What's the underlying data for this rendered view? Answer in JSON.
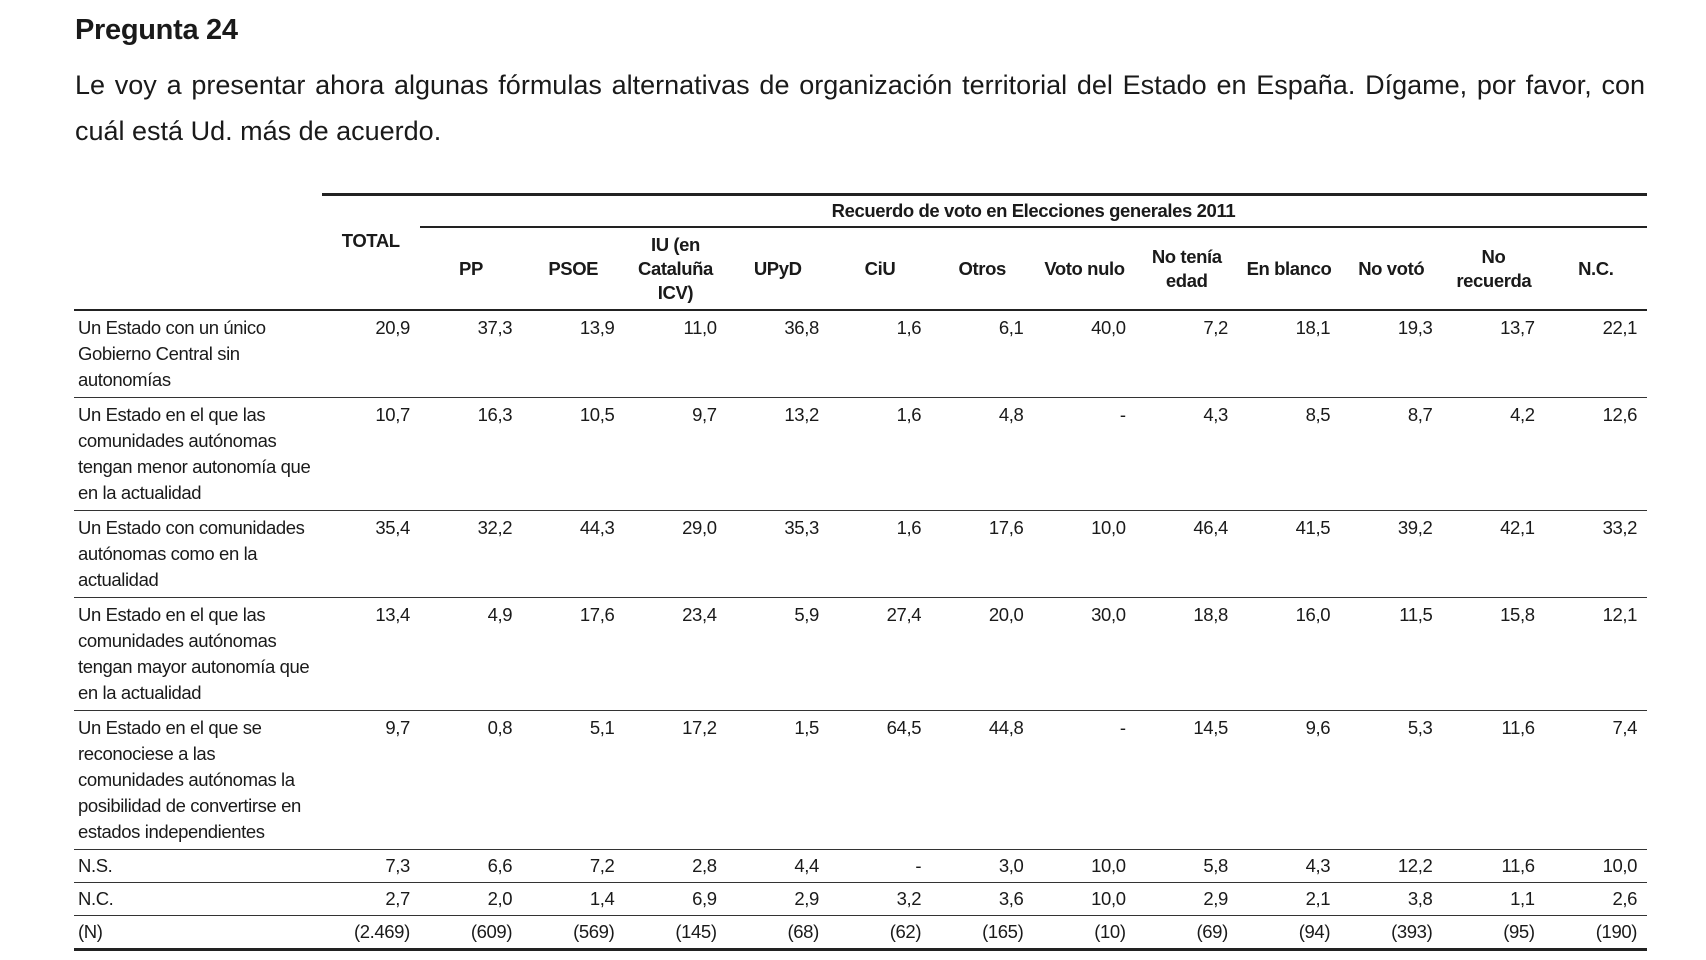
{
  "heading": "Pregunta 24",
  "question": "Le voy a presentar ahora algunas fórmulas alternativas de organización territorial del Estado en España. Dígame, por favor, con cuál está Ud. más de acuerdo.",
  "table": {
    "group_header": "Recuerdo de voto en Elecciones generales 2011",
    "columns": [
      "TOTAL",
      "PP",
      "PSOE",
      "IU (en Cataluña ICV)",
      "UPyD",
      "CiU",
      "Otros",
      "Voto nulo",
      "No tenía edad",
      "En blanco",
      "No votó",
      "No recuerda",
      "N.C."
    ],
    "rows": [
      {
        "label": "Un Estado con un único Gobierno Central sin autonomías",
        "values": [
          "20,9",
          "37,3",
          "13,9",
          "11,0",
          "36,8",
          "1,6",
          "6,1",
          "40,0",
          "7,2",
          "18,1",
          "19,3",
          "13,7",
          "22,1"
        ]
      },
      {
        "label": "Un Estado en el que las comunidades autónomas tengan menor autonomía que en la actualidad",
        "values": [
          "10,7",
          "16,3",
          "10,5",
          "9,7",
          "13,2",
          "1,6",
          "4,8",
          "-",
          "4,3",
          "8,5",
          "8,7",
          "4,2",
          "12,6"
        ]
      },
      {
        "label": "Un Estado con comunidades autónomas como en la actualidad",
        "values": [
          "35,4",
          "32,2",
          "44,3",
          "29,0",
          "35,3",
          "1,6",
          "17,6",
          "10,0",
          "46,4",
          "41,5",
          "39,2",
          "42,1",
          "33,2"
        ]
      },
      {
        "label": "Un Estado en el que las comunidades autónomas tengan mayor autonomía que en la actualidad",
        "values": [
          "13,4",
          "4,9",
          "17,6",
          "23,4",
          "5,9",
          "27,4",
          "20,0",
          "30,0",
          "18,8",
          "16,0",
          "11,5",
          "15,8",
          "12,1"
        ]
      },
      {
        "label": "Un Estado en el que se reconociese a las comunidades autónomas la posibilidad de convertirse en estados independientes",
        "values": [
          "9,7",
          "0,8",
          "5,1",
          "17,2",
          "1,5",
          "64,5",
          "44,8",
          "-",
          "14,5",
          "9,6",
          "5,3",
          "11,6",
          "7,4"
        ]
      },
      {
        "label": "N.S.",
        "values": [
          "7,3",
          "6,6",
          "7,2",
          "2,8",
          "4,4",
          "-",
          "3,0",
          "10,0",
          "5,8",
          "4,3",
          "12,2",
          "11,6",
          "10,0"
        ]
      },
      {
        "label": "N.C.",
        "values": [
          "2,7",
          "2,0",
          "1,4",
          "6,9",
          "2,9",
          "3,2",
          "3,6",
          "10,0",
          "2,9",
          "2,1",
          "3,8",
          "1,1",
          "2,6"
        ]
      }
    ],
    "n_row": {
      "label": "(N)",
      "values": [
        "(2.469)",
        "(609)",
        "(569)",
        "(145)",
        "(68)",
        "(62)",
        "(165)",
        "(10)",
        "(69)",
        "(94)",
        "(393)",
        "(95)",
        "(190)"
      ]
    }
  }
}
